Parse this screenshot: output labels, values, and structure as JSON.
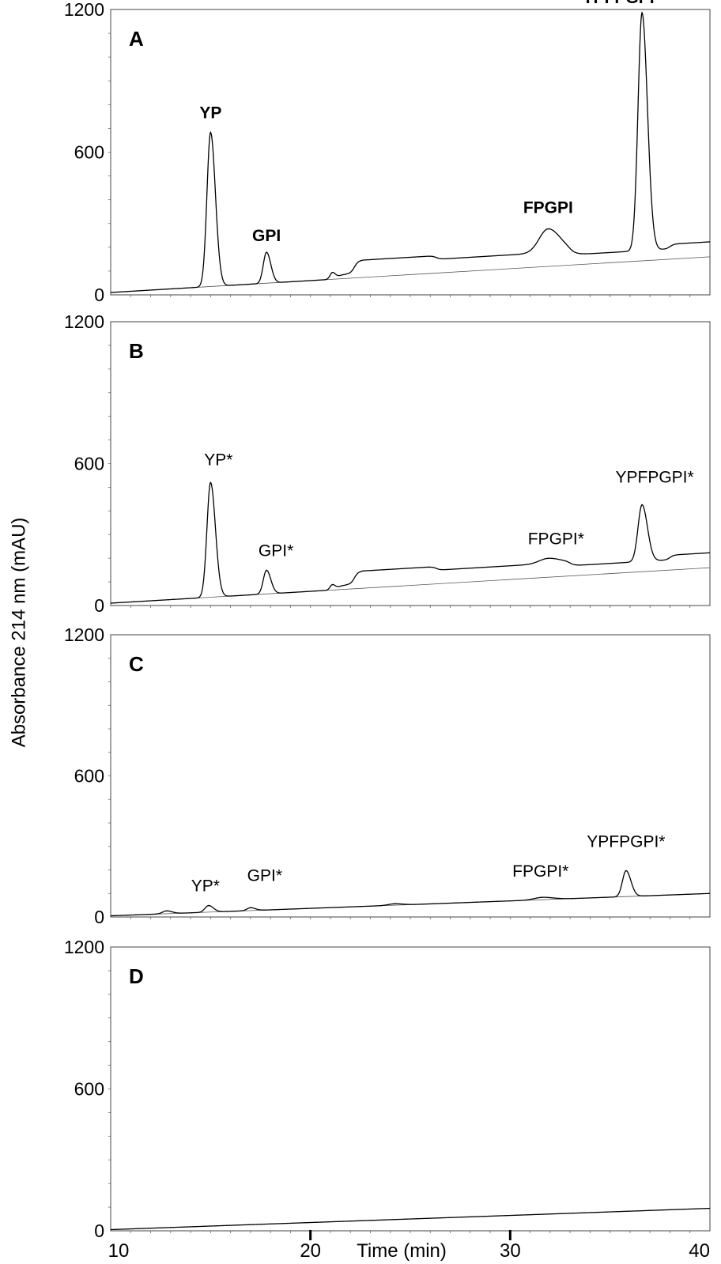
{
  "chart_data": {
    "type": "line",
    "ylabel": "Absorbance 214 nm (mAU)",
    "xlabel": "Time (min)",
    "x_ticks": [
      10,
      20,
      30,
      40
    ],
    "x_marked_ticks": [
      20,
      30
    ],
    "y_ticks": [
      0,
      600,
      1200
    ],
    "xlim": [
      10,
      40
    ],
    "ylim": [
      0,
      1200
    ],
    "panels": [
      {
        "letter": "A",
        "label_style": "bold",
        "baseline": {
          "start": 10,
          "end": 160
        },
        "steps": [
          [
            21.4,
            18
          ],
          [
            22.2,
            55
          ],
          [
            23.1,
            0
          ],
          [
            26.3,
            -15
          ],
          [
            30.0,
            0
          ],
          [
            33.0,
            -15
          ],
          [
            38.0,
            20
          ]
        ],
        "peaks": [
          {
            "label": "YP",
            "x": 15.0,
            "height": 648,
            "width": 0.18
          },
          {
            "label": "GPI",
            "x": 17.8,
            "height": 130,
            "width": 0.16
          },
          {
            "label": "",
            "x": 21.1,
            "height": 28,
            "width": 0.12
          },
          {
            "label": "FPGPI",
            "x": 31.9,
            "height": 100,
            "width": 0.45
          },
          {
            "label": "YPFPGPI",
            "x": 36.6,
            "height": 1000,
            "width": 0.2
          }
        ]
      },
      {
        "letter": "B",
        "label_style": "normal",
        "baseline": {
          "start": 10,
          "end": 160
        },
        "steps": [
          [
            21.4,
            18
          ],
          [
            22.2,
            55
          ],
          [
            23.1,
            0
          ],
          [
            26.3,
            -15
          ],
          [
            30.0,
            0
          ],
          [
            33.0,
            -15
          ],
          [
            38.0,
            20
          ]
        ],
        "peaks": [
          {
            "label": "YP*",
            "x": 15.0,
            "height": 485,
            "width": 0.18
          },
          {
            "label": "GPI*",
            "x": 17.8,
            "height": 100,
            "width": 0.16
          },
          {
            "label": "",
            "x": 21.1,
            "height": 22,
            "width": 0.12
          },
          {
            "label": "FPGPI*",
            "x": 31.9,
            "height": 22,
            "width": 0.45
          },
          {
            "label": "YPFPGPI*",
            "x": 36.6,
            "height": 240,
            "width": 0.2
          }
        ]
      },
      {
        "letter": "C",
        "label_style": "normal",
        "baseline": {
          "start": 5,
          "end": 100
        },
        "steps": [],
        "peaks": [
          {
            "label": "",
            "x": 12.8,
            "height": 12,
            "width": 0.2
          },
          {
            "label": "YP*",
            "x": 14.9,
            "height": 28,
            "width": 0.18
          },
          {
            "label": "GPI*",
            "x": 17.0,
            "height": 12,
            "width": 0.18
          },
          {
            "label": "",
            "x": 24.2,
            "height": 6,
            "width": 0.3
          },
          {
            "label": "FPGPI*",
            "x": 31.6,
            "height": 10,
            "width": 0.4
          },
          {
            "label": "YPFPGPI*",
            "x": 35.8,
            "height": 110,
            "width": 0.18
          }
        ]
      },
      {
        "letter": "D",
        "label_style": "normal",
        "baseline": {
          "start": 5,
          "end": 95
        },
        "steps": [],
        "peaks": []
      }
    ]
  }
}
